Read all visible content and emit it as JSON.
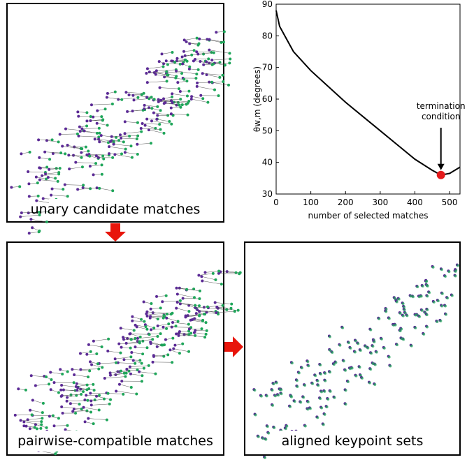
{
  "panels": [
    {
      "caption": "unary candidate matches"
    },
    {
      "caption": "pairwise-compatible matches"
    },
    {
      "caption": "aligned keypoint sets"
    }
  ],
  "chart_data": {
    "type": "line",
    "x_label": "number of selected matches",
    "y_label": "θw,m (degrees)",
    "annotation": "termination\ncondition",
    "x": [
      0,
      10,
      25,
      50,
      100,
      150,
      200,
      250,
      300,
      350,
      400,
      450,
      475,
      500,
      530
    ],
    "series": [
      {
        "color": "#000000",
        "values": [
          88,
          83,
          80,
          75,
          69,
          64,
          59,
          54.5,
          50,
          45.5,
          41,
          37.5,
          36,
          36.5,
          38.5
        ]
      }
    ],
    "termination": {
      "x": 475,
      "y": 36,
      "color": "#e41a1c"
    },
    "xlim": [
      0,
      530
    ],
    "ylim": [
      30,
      90
    ],
    "xticks": [
      0,
      100,
      200,
      300,
      400,
      500
    ],
    "yticks": [
      30,
      40,
      50,
      60,
      70,
      80,
      90
    ]
  }
}
